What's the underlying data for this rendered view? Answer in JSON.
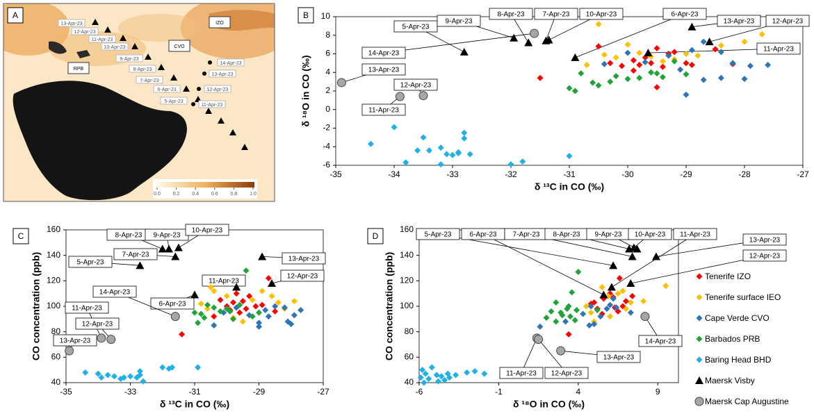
{
  "chart_data": [
    {
      "type": "map",
      "panel_label": "A",
      "stations": [
        "IZO",
        "CVO",
        "RPB"
      ],
      "visby_labels": [
        "13-Apr-23",
        "12-Apr-23",
        "11-Apr-23",
        "10-Apr-23",
        "9-Apr-23",
        "8-Apr-23",
        "7-Apr-23",
        "6-Apr-23",
        "5-Apr-23"
      ],
      "cap_labels": [
        "14-Apr-23",
        "13-Apr-23",
        "12-Apr-23",
        "11-Apr-23"
      ],
      "colorbar_ticks": [
        {
          "value": 0,
          "label": "0.0"
        },
        {
          "value": 0.2,
          "label": "0.2"
        },
        {
          "value": 0.4,
          "label": "0.4"
        },
        {
          "value": 0.6,
          "label": "0.6"
        },
        {
          "value": 0.8,
          "label": "0.8"
        },
        {
          "value": 1,
          "label": "1.0"
        }
      ]
    },
    {
      "type": "scatter",
      "panel_label": "B",
      "x_label": "δ ¹³C in CO (‰)",
      "y_label": "δ ¹⁸O in CO (‰)",
      "xlim": [
        -35,
        -27
      ],
      "xticks": [
        -35,
        -34,
        -33,
        -32,
        -31,
        -30,
        -29,
        -28,
        -27
      ],
      "ylim": [
        -6,
        10
      ],
      "yticks": [
        -6,
        -4,
        -2,
        0,
        2,
        4,
        6,
        8,
        10
      ],
      "series": [
        {
          "color": "#ff0000",
          "marker": "diamond",
          "x": [
            -31.5,
            -30.5,
            -30.3,
            -30.1,
            -29.9,
            -29.8,
            -29.7,
            -29.6,
            -29.5,
            -29.4,
            -29.3,
            -29.2,
            -29.0,
            -28.9,
            -28.5,
            -28.2,
            -29.9,
            -29.5
          ],
          "values": [
            3.4,
            6.8,
            5.0,
            4.7,
            5.3,
            4.8,
            5.6,
            5.0,
            6.6,
            4.6,
            6.0,
            6.2,
            5.0,
            4.8,
            6.5,
            4.9,
            4.2,
            2.4
          ]
        },
        {
          "color": "#ffc000",
          "marker": "diamond",
          "x": [
            -30.5,
            -30.7,
            -30.2,
            -30.0,
            -29.8,
            -29.6,
            -29.4,
            -29.0,
            -28.8,
            -28.4,
            -28.0,
            -27.7,
            -30.4,
            -29.2
          ],
          "values": [
            9.2,
            4.8,
            5.6,
            7.0,
            6.1,
            5.7,
            5.2,
            6.0,
            5.8,
            6.9,
            7.3,
            8.1,
            5.9,
            5.4
          ]
        },
        {
          "color": "#2e75b6",
          "marker": "diamond",
          "x": [
            -30.4,
            -30.0,
            -29.7,
            -29.3,
            -29.1,
            -28.9,
            -28.7,
            -28.4,
            -28.2,
            -28.0,
            -27.9,
            -27.6,
            -28.7,
            -29.0,
            -28.4
          ],
          "values": [
            4.9,
            6.1,
            5.1,
            5.8,
            4.3,
            6.4,
            3.2,
            6.2,
            5.0,
            3.3,
            4.7,
            4.8,
            7.3,
            1.6,
            3.4
          ]
        },
        {
          "color": "#22a33a",
          "marker": "diamond",
          "x": [
            -31.0,
            -30.9,
            -30.6,
            -30.3,
            -30.2,
            -30.0,
            -29.8,
            -29.6,
            -29.4,
            -29.2,
            -29.0,
            -30.8,
            -30.5,
            -29.5
          ],
          "values": [
            2.3,
            2.0,
            2.9,
            3.0,
            3.6,
            3.3,
            3.4,
            4.0,
            3.5,
            5.2,
            3.8,
            3.9,
            2.6,
            3.9
          ]
        },
        {
          "color": "#1fb0e8",
          "marker": "diamond",
          "x": [
            -34.4,
            -34.0,
            -33.8,
            -33.6,
            -33.5,
            -33.4,
            -33.2,
            -33.1,
            -33.0,
            -32.9,
            -32.8,
            -32.7,
            -32.8,
            -33.2,
            -32.0,
            -31.8,
            -31.0,
            -32.9
          ],
          "values": [
            -3.7,
            -1.9,
            -5.7,
            -4.4,
            -3.0,
            -4.4,
            -4.1,
            -4.8,
            -4.9,
            -4.6,
            -2.5,
            -4.8,
            -3.1,
            -5.9,
            -5.9,
            -5.6,
            -5.0,
            -4.7
          ]
        },
        {
          "color": "#000000",
          "marker": "triangle",
          "x": [
            -32.8,
            -30.9,
            -31.4,
            -31.7,
            -31.95,
            -31.35,
            -29.65,
            -28.6,
            -28.9
          ],
          "values": [
            6.2,
            5.6,
            7.4,
            7.2,
            7.7,
            7.5,
            6.1,
            7.3,
            8.9
          ],
          "point_labels": [
            "5-Apr-23",
            "6-Apr-23",
            "7-Apr-23",
            "8-Apr-23",
            "9-Apr-23",
            "10-Apr-23",
            "11-Apr-23",
            "12-Apr-23",
            "13-Apr-23"
          ]
        },
        {
          "color": "#a6a6a6",
          "marker": "circle",
          "x": [
            -33.9,
            -33.5,
            -34.9,
            -31.6
          ],
          "values": [
            1.4,
            1.5,
            2.9,
            8.2
          ],
          "point_labels": [
            "11-Apr-23",
            "12-Apr-23",
            "13-Apr-23",
            "14-Apr-23"
          ]
        }
      ]
    },
    {
      "type": "scatter",
      "panel_label": "C",
      "x_label": "δ ¹³C in CO (‰)",
      "y_label": "CO concentration (ppb)",
      "xlim": [
        -35,
        -27
      ],
      "xticks": [
        -35,
        -33,
        -31,
        -29,
        -27
      ],
      "ylim": [
        40,
        160
      ],
      "yticks": [
        40,
        60,
        80,
        100,
        120,
        140,
        160
      ],
      "series": [
        {
          "color": "#ff0000",
          "marker": "diamond",
          "x": [
            -31.4,
            -30.2,
            -30.0,
            -29.9,
            -29.8,
            -29.7,
            -29.6,
            -29.5,
            -29.4,
            -29.3,
            -29.1,
            -28.9,
            -28.7,
            -28.5,
            -30.4
          ],
          "values": [
            78,
            105,
            100,
            97,
            103,
            110,
            95,
            104,
            98,
            108,
            100,
            101,
            122,
            96,
            92
          ]
        },
        {
          "color": "#ffc000",
          "marker": "diamond",
          "x": [
            -30.5,
            -30.4,
            -30.6,
            -30.0,
            -29.8,
            -29.5,
            -29.2,
            -28.9,
            -28.6,
            -28.4,
            -27.9,
            -29.7,
            -28.2,
            -30.8
          ],
          "values": [
            115,
            112,
            98,
            108,
            91,
            88,
            105,
            112,
            108,
            103,
            104,
            99,
            98,
            102
          ]
        },
        {
          "color": "#2e75b6",
          "marker": "diamond",
          "x": [
            -30.4,
            -30.1,
            -29.7,
            -29.3,
            -29.0,
            -28.8,
            -28.5,
            -28.2,
            -28.1,
            -28.0,
            -27.9,
            -27.7,
            -28.7,
            -29.0
          ],
          "values": [
            85,
            95,
            99,
            93,
            87,
            97,
            100,
            99,
            88,
            86,
            93,
            97,
            92,
            84
          ]
        },
        {
          "color": "#22a33a",
          "marker": "diamond",
          "x": [
            -31.0,
            -30.9,
            -30.8,
            -30.6,
            -30.4,
            -30.2,
            -30.0,
            -29.8,
            -29.6,
            -29.4,
            -29.2,
            -29.0,
            -30.7,
            -29.9
          ],
          "values": [
            95,
            87,
            94,
            101,
            99,
            96,
            98,
            90,
            101,
            128,
            92,
            95,
            91,
            96
          ]
        },
        {
          "color": "#1fb0e8",
          "marker": "diamond",
          "x": [
            -34.4,
            -34.0,
            -33.9,
            -33.7,
            -33.5,
            -33.3,
            -33.2,
            -33.0,
            -32.8,
            -32.7,
            -32.6,
            -32.0,
            -31.8,
            -31.7,
            -30.9,
            -32.7
          ],
          "values": [
            48,
            47,
            44,
            46,
            45,
            43,
            44,
            45,
            44,
            49,
            41,
            52,
            51,
            52,
            52,
            46
          ]
        },
        {
          "color": "#000000",
          "marker": "triangle",
          "x": [
            -32.7,
            -31.0,
            -31.6,
            -32.0,
            -31.8,
            -31.5,
            -29.7,
            -28.6,
            -28.9
          ],
          "values": [
            132,
            109,
            139,
            145,
            145,
            146,
            115,
            118,
            139
          ],
          "point_labels": [
            "5-Apr-23",
            "6-Apr-23",
            "7-Apr-23",
            "8-Apr-23",
            "9-Apr-23",
            "10-Apr-23",
            "11-Apr-23",
            "12-Apr-23",
            "13-Apr-23"
          ]
        },
        {
          "color": "#a6a6a6",
          "marker": "circle",
          "x": [
            -33.9,
            -33.6,
            -34.9,
            -31.6
          ],
          "values": [
            75,
            74,
            65,
            92
          ],
          "point_labels": [
            "11-Apr-23",
            "12-Apr-23",
            "13-Apr-23",
            "14-Apr-23"
          ]
        }
      ]
    },
    {
      "type": "scatter",
      "panel_label": "D",
      "x_label": "δ ¹⁸O in CO (‰)",
      "y_label": "CO concentration (ppb)",
      "xlim": [
        -6,
        10.3
      ],
      "xticks": [
        -6,
        -1,
        4,
        9
      ],
      "ylim": [
        40,
        160
      ],
      "yticks": [
        40,
        60,
        80,
        100,
        120,
        140,
        160
      ],
      "legend": "right",
      "series": [
        {
          "name": "Tenerife IZO",
          "color": "#ff0000",
          "marker": "diamond",
          "x": [
            3.4,
            4.8,
            5.2,
            5.0,
            5.6,
            6.0,
            6.3,
            6.6,
            7.0,
            6.5,
            7.4,
            6.8,
            5.5,
            6.2
          ],
          "values": [
            78,
            102,
            98,
            103,
            106,
            110,
            99,
            122,
            104,
            96,
            108,
            100,
            94,
            107
          ]
        },
        {
          "name": "Tenerife surface IEO",
          "color": "#ffc000",
          "marker": "diamond",
          "x": [
            4.8,
            5.5,
            5.9,
            6.5,
            7.3,
            6.0,
            5.0,
            8.1,
            9.5,
            7.0,
            4.5,
            6.8
          ],
          "values": [
            95,
            115,
            108,
            110,
            103,
            92,
            88,
            104,
            116,
            98,
            100,
            112
          ]
        },
        {
          "name": "Cape Verde CVO",
          "color": "#2e75b6",
          "marker": "diamond",
          "x": [
            1.6,
            3.2,
            4.3,
            4.8,
            5.0,
            5.8,
            6.2,
            6.4,
            7.3,
            4.7,
            6.0,
            5.4
          ],
          "values": [
            84,
            88,
            94,
            100,
            86,
            98,
            106,
            99,
            95,
            85,
            101,
            92
          ]
        },
        {
          "name": "Barbados PRB",
          "color": "#22a33a",
          "marker": "diamond",
          "x": [
            2.0,
            2.3,
            2.6,
            2.9,
            3.0,
            3.3,
            3.5,
            3.6,
            3.8,
            4.0,
            3.4,
            5.2,
            3.9,
            2.6
          ],
          "values": [
            91,
            96,
            103,
            95,
            93,
            98,
            92,
            111,
            89,
            127,
            100,
            97,
            97,
            88
          ]
        },
        {
          "name": "Baring Head BHD",
          "color": "#1fb0e8",
          "marker": "diamond",
          "x": [
            -5.9,
            -5.8,
            -5.6,
            -5.4,
            -5.2,
            -4.9,
            -4.8,
            -4.6,
            -4.4,
            -4.2,
            -3.7,
            -3.0,
            -2.5,
            -1.9,
            -5.7,
            -4.1
          ],
          "values": [
            44,
            50,
            47,
            43,
            52,
            46,
            41,
            45,
            42,
            47,
            46,
            48,
            49,
            47,
            40,
            44
          ]
        },
        {
          "name": "Maersk Visby",
          "color": "#000000",
          "marker": "triangle",
          "x": [
            6.2,
            5.6,
            7.4,
            7.2,
            7.7,
            7.5,
            6.1,
            7.3,
            8.9
          ],
          "values": [
            132,
            109,
            139,
            145,
            145,
            146,
            115,
            118,
            139
          ],
          "point_labels": [
            "5-Apr-23",
            "6-Apr-23",
            "7-Apr-23",
            "8-Apr-23",
            "9-Apr-23",
            "10-Apr-23",
            "11-Apr-23",
            "12-Apr-23",
            "13-Apr-23"
          ]
        },
        {
          "name": "Maersk Cap Augustine",
          "color": "#a6a6a6",
          "marker": "circle",
          "x": [
            1.4,
            1.5,
            2.9,
            8.2
          ],
          "values": [
            75,
            74,
            65,
            92
          ],
          "point_labels": [
            "11-Apr-23",
            "12-Apr-23",
            "13-Apr-23",
            "14-Apr-23"
          ]
        }
      ]
    }
  ]
}
